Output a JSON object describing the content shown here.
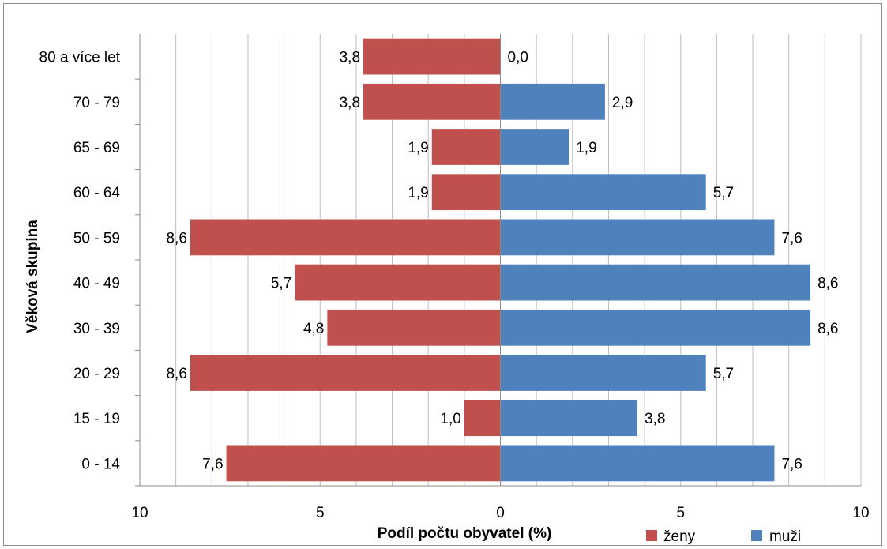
{
  "chart_data": {
    "type": "bar",
    "orientation": "horizontal",
    "layout": "population-pyramid",
    "categories": [
      "0 - 14",
      "15 - 19",
      "20 - 29",
      "30 - 39",
      "40 - 49",
      "50 - 59",
      "60 - 64",
      "65 - 69",
      "70 - 79",
      "80 a více let"
    ],
    "series": [
      {
        "name": "ženy",
        "color": "#c0504d",
        "side": "left",
        "values": [
          7.6,
          1.0,
          8.6,
          4.8,
          5.7,
          8.6,
          1.9,
          1.9,
          3.8,
          3.8
        ],
        "labels": [
          "7,6",
          "1,0",
          "8,6",
          "4,8",
          "5,7",
          "8,6",
          "1,9",
          "1,9",
          "3,8",
          "3,8"
        ]
      },
      {
        "name": "muži",
        "color": "#4f81bd",
        "side": "right",
        "values": [
          7.6,
          3.8,
          5.7,
          8.6,
          8.6,
          7.6,
          5.7,
          1.9,
          2.9,
          0.0
        ],
        "labels": [
          "7,6",
          "3,8",
          "5,7",
          "8,6",
          "8,6",
          "7,6",
          "5,7",
          "1,9",
          "2,9",
          "0,0"
        ]
      }
    ],
    "xlim": [
      -10,
      10
    ],
    "xticks": [
      {
        "value": -10,
        "label": "10"
      },
      {
        "value": -5,
        "label": "5"
      },
      {
        "value": 0,
        "label": "0"
      },
      {
        "value": 5,
        "label": "5"
      },
      {
        "value": 10,
        "label": "10"
      }
    ],
    "minor_grid_step": 1,
    "xlabel": "Podíl počtu obyvatel (%)",
    "ylabel": "Věková skupina",
    "grid": true,
    "legend_position": "bottom-right"
  }
}
